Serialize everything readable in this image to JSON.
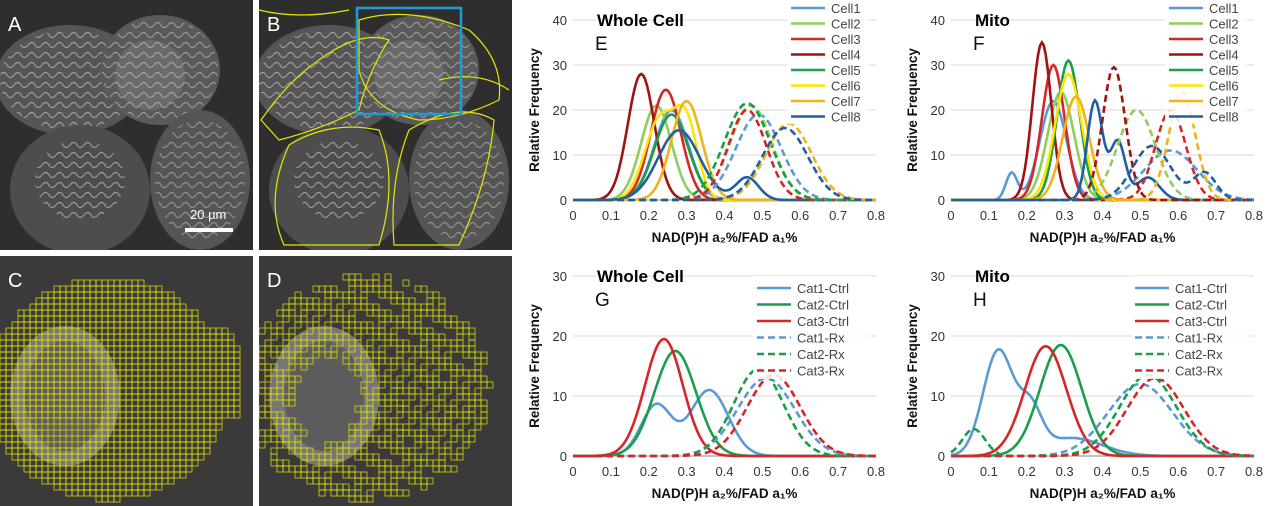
{
  "panels": {
    "A": {
      "label": "A",
      "scale_bar": "20 µm"
    },
    "B": {
      "label": "B",
      "roi_color": "#1e9bd7",
      "outline_color": "#e6e600"
    },
    "C": {
      "label": "C",
      "grid_color": "#e6e600"
    },
    "D": {
      "label": "D",
      "grid_color": "#e6e600"
    }
  },
  "chart_data": [
    {
      "id": "E",
      "panel_label": "E",
      "type": "line",
      "title": "Whole Cell",
      "xlabel": "NAD(P)H a₂%/FAD a₁%",
      "ylabel": "Relative Frequency",
      "xlim": [
        0,
        0.8
      ],
      "ylim": [
        0,
        40
      ],
      "xticks": [
        "0",
        "0.1",
        "0.2",
        "0.3",
        "0.4",
        "0.5",
        "0.6",
        "0.7",
        "0.8"
      ],
      "yticks": [
        "0",
        "10",
        "20",
        "30",
        "40"
      ],
      "series": [
        {
          "name": "Cell1",
          "color": "#5b9bd5",
          "dash": false,
          "peaks": [
            {
              "mu": 0.26,
              "sd": 0.045,
              "h": 20
            }
          ]
        },
        {
          "name": "Cell2",
          "color": "#8fce5a",
          "dash": false,
          "peaks": [
            {
              "mu": 0.22,
              "sd": 0.04,
              "h": 21
            }
          ]
        },
        {
          "name": "Cell3",
          "color": "#d62728",
          "dash": false,
          "peaks": [
            {
              "mu": 0.245,
              "sd": 0.04,
              "h": 24.5
            }
          ]
        },
        {
          "name": "Cell4",
          "color": "#a11212",
          "dash": false,
          "peaks": [
            {
              "mu": 0.18,
              "sd": 0.035,
              "h": 28
            }
          ]
        },
        {
          "name": "Cell5",
          "color": "#1a9e4a",
          "dash": false,
          "peaks": [
            {
              "mu": 0.26,
              "sd": 0.045,
              "h": 19
            }
          ]
        },
        {
          "name": "Cell6",
          "color": "#ffe600",
          "dash": false,
          "peaks": [
            {
              "mu": 0.23,
              "sd": 0.04,
              "h": 18
            },
            {
              "mu": 0.3,
              "sd": 0.03,
              "h": 16
            }
          ]
        },
        {
          "name": "Cell7",
          "color": "#f2b21c",
          "dash": false,
          "peaks": [
            {
              "mu": 0.3,
              "sd": 0.04,
              "h": 22
            }
          ]
        },
        {
          "name": "Cell8",
          "color": "#1f5fa3",
          "dash": false,
          "peaks": [
            {
              "mu": 0.28,
              "sd": 0.055,
              "h": 15.5
            },
            {
              "mu": 0.46,
              "sd": 0.03,
              "h": 5
            }
          ]
        },
        {
          "name": "Cell1 Rx",
          "color": "#5b9bd5",
          "dash": true,
          "peaks": [
            {
              "mu": 0.49,
              "sd": 0.06,
              "h": 19
            }
          ]
        },
        {
          "name": "Cell2 Rx",
          "color": "#8fce5a",
          "dash": true,
          "peaks": [
            {
              "mu": 0.47,
              "sd": 0.055,
              "h": 21
            }
          ]
        },
        {
          "name": "Cell3 Rx",
          "color": "#d62728",
          "dash": true,
          "peaks": [
            {
              "mu": 0.46,
              "sd": 0.05,
              "h": 20
            }
          ]
        },
        {
          "name": "Cell5 Rx",
          "color": "#1a9e4a",
          "dash": true,
          "peaks": [
            {
              "mu": 0.46,
              "sd": 0.06,
              "h": 21.5
            }
          ]
        },
        {
          "name": "Cell7 Rx",
          "color": "#f2b21c",
          "dash": true,
          "peaks": [
            {
              "mu": 0.57,
              "sd": 0.06,
              "h": 17
            }
          ]
        },
        {
          "name": "Cell8 Rx",
          "color": "#1f5fa3",
          "dash": true,
          "peaks": [
            {
              "mu": 0.56,
              "sd": 0.06,
              "h": 16
            }
          ]
        }
      ],
      "legend": [
        "Cell1",
        "Cell2",
        "Cell3",
        "Cell4",
        "Cell5",
        "Cell6",
        "Cell7",
        "Cell8"
      ]
    },
    {
      "id": "F",
      "panel_label": "F",
      "type": "line",
      "title": "Mito",
      "xlabel": "NAD(P)H a₂%/FAD a₁%",
      "ylabel": "Relative Frequency",
      "xlim": [
        0,
        0.8
      ],
      "ylim": [
        0,
        40
      ],
      "xticks": [
        "0",
        "0.1",
        "0.2",
        "0.3",
        "0.4",
        "0.5",
        "0.6",
        "0.7",
        "0.8"
      ],
      "yticks": [
        "0",
        "10",
        "20",
        "30",
        "40"
      ],
      "series": [
        {
          "name": "Cell1",
          "color": "#5b9bd5",
          "dash": false,
          "peaks": [
            {
              "mu": 0.16,
              "sd": 0.015,
              "h": 6
            },
            {
              "mu": 0.27,
              "sd": 0.035,
              "h": 22
            }
          ]
        },
        {
          "name": "Cell2",
          "color": "#8fce5a",
          "dash": false,
          "peaks": [
            {
              "mu": 0.29,
              "sd": 0.035,
              "h": 24
            }
          ]
        },
        {
          "name": "Cell3",
          "color": "#d62728",
          "dash": false,
          "peaks": [
            {
              "mu": 0.27,
              "sd": 0.03,
              "h": 30
            }
          ]
        },
        {
          "name": "Cell4",
          "color": "#a11212",
          "dash": false,
          "peaks": [
            {
              "mu": 0.24,
              "sd": 0.025,
              "h": 35
            }
          ]
        },
        {
          "name": "Cell5",
          "color": "#1a9e4a",
          "dash": false,
          "peaks": [
            {
              "mu": 0.31,
              "sd": 0.03,
              "h": 31
            }
          ]
        },
        {
          "name": "Cell6",
          "color": "#ffe600",
          "dash": false,
          "peaks": [
            {
              "mu": 0.31,
              "sd": 0.035,
              "h": 28
            }
          ]
        },
        {
          "name": "Cell7",
          "color": "#f2b21c",
          "dash": false,
          "peaks": [
            {
              "mu": 0.33,
              "sd": 0.035,
              "h": 23
            }
          ]
        },
        {
          "name": "Cell8",
          "color": "#1f5fa3",
          "dash": false,
          "peaks": [
            {
              "mu": 0.38,
              "sd": 0.02,
              "h": 22
            },
            {
              "mu": 0.44,
              "sd": 0.02,
              "h": 13
            },
            {
              "mu": 0.52,
              "sd": 0.03,
              "h": 5
            }
          ]
        },
        {
          "name": "Cell1 Rx",
          "color": "#5b9bd5",
          "dash": true,
          "peaks": [
            {
              "mu": 0.58,
              "sd": 0.07,
              "h": 11
            }
          ]
        },
        {
          "name": "Cell2 Rx",
          "color": "#8fce5a",
          "dash": true,
          "peaks": [
            {
              "mu": 0.49,
              "sd": 0.05,
              "h": 20
            }
          ]
        },
        {
          "name": "Cell3 Rx",
          "color": "#d62728",
          "dash": true,
          "peaks": [
            {
              "mu": 0.58,
              "sd": 0.04,
              "h": 20
            }
          ]
        },
        {
          "name": "Cell4 Rx",
          "color": "#a11212",
          "dash": true,
          "peaks": [
            {
              "mu": 0.43,
              "sd": 0.03,
              "h": 29.5
            }
          ]
        },
        {
          "name": "Cell7 Rx",
          "color": "#f2b21c",
          "dash": true,
          "peaks": [
            {
              "mu": 0.61,
              "sd": 0.035,
              "h": 24
            }
          ]
        },
        {
          "name": "Cell8 Rx",
          "color": "#1f5fa3",
          "dash": true,
          "peaks": [
            {
              "mu": 0.53,
              "sd": 0.05,
              "h": 12
            },
            {
              "mu": 0.67,
              "sd": 0.03,
              "h": 6
            }
          ]
        }
      ],
      "legend": [
        "Cell1",
        "Cell2",
        "Cell3",
        "Cell4",
        "Cell5",
        "Cell6",
        "Cell7",
        "Cell8"
      ]
    },
    {
      "id": "G",
      "panel_label": "G",
      "type": "line",
      "title": "Whole Cell",
      "xlabel": "NAD(P)H a₂%/FAD a₁%",
      "ylabel": "Relative Frequency",
      "xlim": [
        0,
        0.8
      ],
      "ylim": [
        0,
        30
      ],
      "xticks": [
        "0",
        "0.1",
        "0.2",
        "0.3",
        "0.4",
        "0.5",
        "0.6",
        "0.7",
        "0.8"
      ],
      "yticks": [
        "0",
        "10",
        "20",
        "30"
      ],
      "series": [
        {
          "name": "Cat1-Ctrl",
          "color": "#5b9bd5",
          "dash": false,
          "peaks": [
            {
              "mu": 0.22,
              "sd": 0.04,
              "h": 8.5
            },
            {
              "mu": 0.36,
              "sd": 0.05,
              "h": 11
            }
          ]
        },
        {
          "name": "Cat2-Ctrl",
          "color": "#1a9e4a",
          "dash": false,
          "peaks": [
            {
              "mu": 0.27,
              "sd": 0.055,
              "h": 17.5
            }
          ]
        },
        {
          "name": "Cat3-Ctrl",
          "color": "#d62728",
          "dash": false,
          "peaks": [
            {
              "mu": 0.24,
              "sd": 0.05,
              "h": 19.5
            }
          ]
        },
        {
          "name": "Cat1-Rx",
          "color": "#5b9bd5",
          "dash": true,
          "peaks": [
            {
              "mu": 0.51,
              "sd": 0.075,
              "h": 13
            }
          ]
        },
        {
          "name": "Cat2-Rx",
          "color": "#1a9e4a",
          "dash": true,
          "peaks": [
            {
              "mu": 0.49,
              "sd": 0.065,
              "h": 14.5
            }
          ]
        },
        {
          "name": "Cat3-Rx",
          "color": "#d62728",
          "dash": true,
          "peaks": [
            {
              "mu": 0.53,
              "sd": 0.07,
              "h": 13.5
            }
          ]
        }
      ],
      "legend": [
        "Cat1-Ctrl",
        "Cat2-Ctrl",
        "Cat3-Ctrl",
        "Cat1-Rx",
        "Cat2-Rx",
        "Cat3-Rx"
      ]
    },
    {
      "id": "H",
      "panel_label": "H",
      "type": "line",
      "title": "Mito",
      "xlabel": "NAD(P)H a₂%/FAD a₁%",
      "ylabel": "Relative Frequency",
      "xlim": [
        0,
        0.8
      ],
      "ylim": [
        0,
        30
      ],
      "xticks": [
        "0",
        "0.1",
        "0.2",
        "0.3",
        "0.4",
        "0.5",
        "0.6",
        "0.7",
        "0.8"
      ],
      "yticks": [
        "0",
        "10",
        "20",
        "30"
      ],
      "series": [
        {
          "name": "Cat1-Ctrl",
          "color": "#5b9bd5",
          "dash": false,
          "peaks": [
            {
              "mu": 0.125,
              "sd": 0.04,
              "h": 17.5
            },
            {
              "mu": 0.21,
              "sd": 0.03,
              "h": 7
            },
            {
              "mu": 0.32,
              "sd": 0.08,
              "h": 3
            }
          ]
        },
        {
          "name": "Cat2-Ctrl",
          "color": "#1a9e4a",
          "dash": false,
          "peaks": [
            {
              "mu": 0.29,
              "sd": 0.055,
              "h": 18.5
            }
          ]
        },
        {
          "name": "Cat3-Ctrl",
          "color": "#d62728",
          "dash": false,
          "peaks": [
            {
              "mu": 0.25,
              "sd": 0.055,
              "h": 18.3
            }
          ]
        },
        {
          "name": "Cat1-Rx",
          "color": "#5b9bd5",
          "dash": true,
          "peaks": [
            {
              "mu": 0.5,
              "sd": 0.085,
              "h": 12
            }
          ]
        },
        {
          "name": "Cat2-Rx",
          "color": "#1a9e4a",
          "dash": true,
          "peaks": [
            {
              "mu": 0.06,
              "sd": 0.03,
              "h": 4.5
            },
            {
              "mu": 0.52,
              "sd": 0.075,
              "h": 13.5
            }
          ]
        },
        {
          "name": "Cat3-Rx",
          "color": "#d62728",
          "dash": true,
          "peaks": [
            {
              "mu": 0.54,
              "sd": 0.075,
              "h": 13
            }
          ]
        }
      ],
      "legend": [
        "Cat1-Ctrl",
        "Cat2-Ctrl",
        "Cat3-Ctrl",
        "Cat1-Rx",
        "Cat2-Rx",
        "Cat3-Rx"
      ]
    }
  ]
}
